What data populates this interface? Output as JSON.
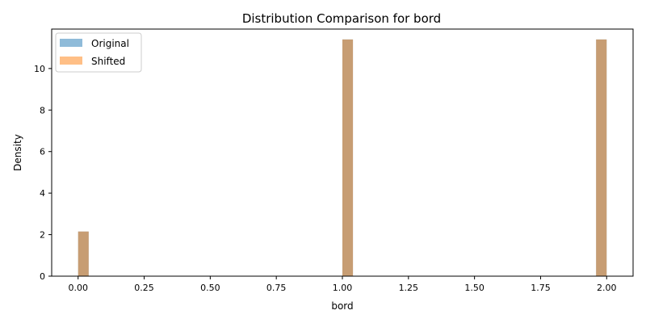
{
  "chart_data": {
    "type": "bar",
    "title": "Distribution Comparison for bord",
    "xlabel": "bord",
    "ylabel": "Density",
    "xlim": [
      -0.1,
      2.1
    ],
    "ylim": [
      0,
      11.9
    ],
    "xticks": [
      "0.00",
      "0.25",
      "0.50",
      "0.75",
      "1.00",
      "1.25",
      "1.50",
      "1.75",
      "2.00"
    ],
    "xtick_values": [
      0,
      0.25,
      0.5,
      0.75,
      1.0,
      1.25,
      1.5,
      1.75,
      2.0
    ],
    "yticks": [
      "0",
      "2",
      "4",
      "6",
      "8",
      "10"
    ],
    "ytick_values": [
      0,
      2,
      4,
      6,
      8,
      10
    ],
    "bin_width": 0.04,
    "grid": false,
    "legend": "top-left",
    "series": [
      {
        "name": "Original",
        "color": "#1f77b4",
        "opacity": 0.5,
        "bins": [
          {
            "x0": 0.0,
            "x1": 0.04,
            "density": 2.15
          },
          {
            "x0": 1.0,
            "x1": 1.04,
            "density": 11.4
          },
          {
            "x0": 1.96,
            "x1": 2.0,
            "density": 11.4
          }
        ]
      },
      {
        "name": "Shifted",
        "color": "#ff7f0e",
        "opacity": 0.5,
        "bins": [
          {
            "x0": 0.0,
            "x1": 0.04,
            "density": 2.15
          },
          {
            "x0": 1.0,
            "x1": 1.04,
            "density": 11.4
          },
          {
            "x0": 1.96,
            "x1": 2.0,
            "density": 11.4
          }
        ]
      }
    ]
  }
}
